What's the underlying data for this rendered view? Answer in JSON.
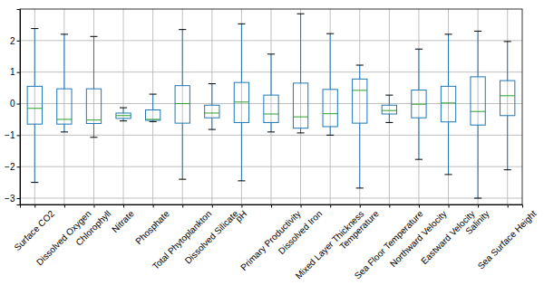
{
  "chart_data": {
    "type": "box",
    "categories": [
      "Surface CO2",
      "Dissolved Oxygen",
      "Chlorophyll",
      "Nitrate",
      "Phosphate",
      "Total Phytoplankton",
      "Dissolved Silicate",
      "pH",
      "Primary Productivity",
      "Dissolved Iron",
      "Mixed Layer Thickness",
      "Temperature",
      "Sea Floor Temperature",
      "Northward Velocity",
      "Eastward Velocity",
      "Salinity",
      "Sea Surface Height"
    ],
    "whisker_low": [
      -2.5,
      -0.9,
      -1.07,
      -0.55,
      -0.57,
      -2.4,
      -0.82,
      -2.45,
      -0.9,
      -0.93,
      -1.0,
      -2.68,
      -0.6,
      -1.77,
      -2.25,
      -3.0,
      -2.1
    ],
    "q1": [
      -0.65,
      -0.65,
      -0.63,
      -0.47,
      -0.53,
      -0.62,
      -0.45,
      -0.6,
      -0.6,
      -0.78,
      -0.73,
      -0.62,
      -0.33,
      -0.45,
      -0.58,
      -0.68,
      -0.38
    ],
    "median": [
      -0.15,
      -0.5,
      -0.52,
      -0.38,
      -0.5,
      0.0,
      -0.3,
      0.05,
      -0.33,
      -0.42,
      -0.32,
      0.42,
      -0.22,
      -0.02,
      0.02,
      -0.25,
      0.25
    ],
    "q3": [
      0.55,
      0.47,
      0.47,
      -0.3,
      -0.2,
      0.57,
      -0.05,
      0.67,
      0.27,
      0.65,
      0.45,
      0.78,
      -0.05,
      0.43,
      0.55,
      0.85,
      0.73
    ],
    "whisker_high": [
      2.38,
      2.2,
      2.13,
      -0.13,
      0.3,
      2.35,
      0.63,
      2.53,
      1.57,
      2.85,
      2.22,
      1.22,
      0.27,
      1.73,
      2.2,
      2.3,
      1.97
    ],
    "ylim": [
      -3.2,
      3.0
    ],
    "yticks": [
      {
        "value": -3,
        "label": "−3"
      },
      {
        "value": -2,
        "label": "−2"
      },
      {
        "value": -1,
        "label": "−1"
      },
      0,
      1,
      2
    ],
    "color": "#1f77b4",
    "grid": true
  }
}
